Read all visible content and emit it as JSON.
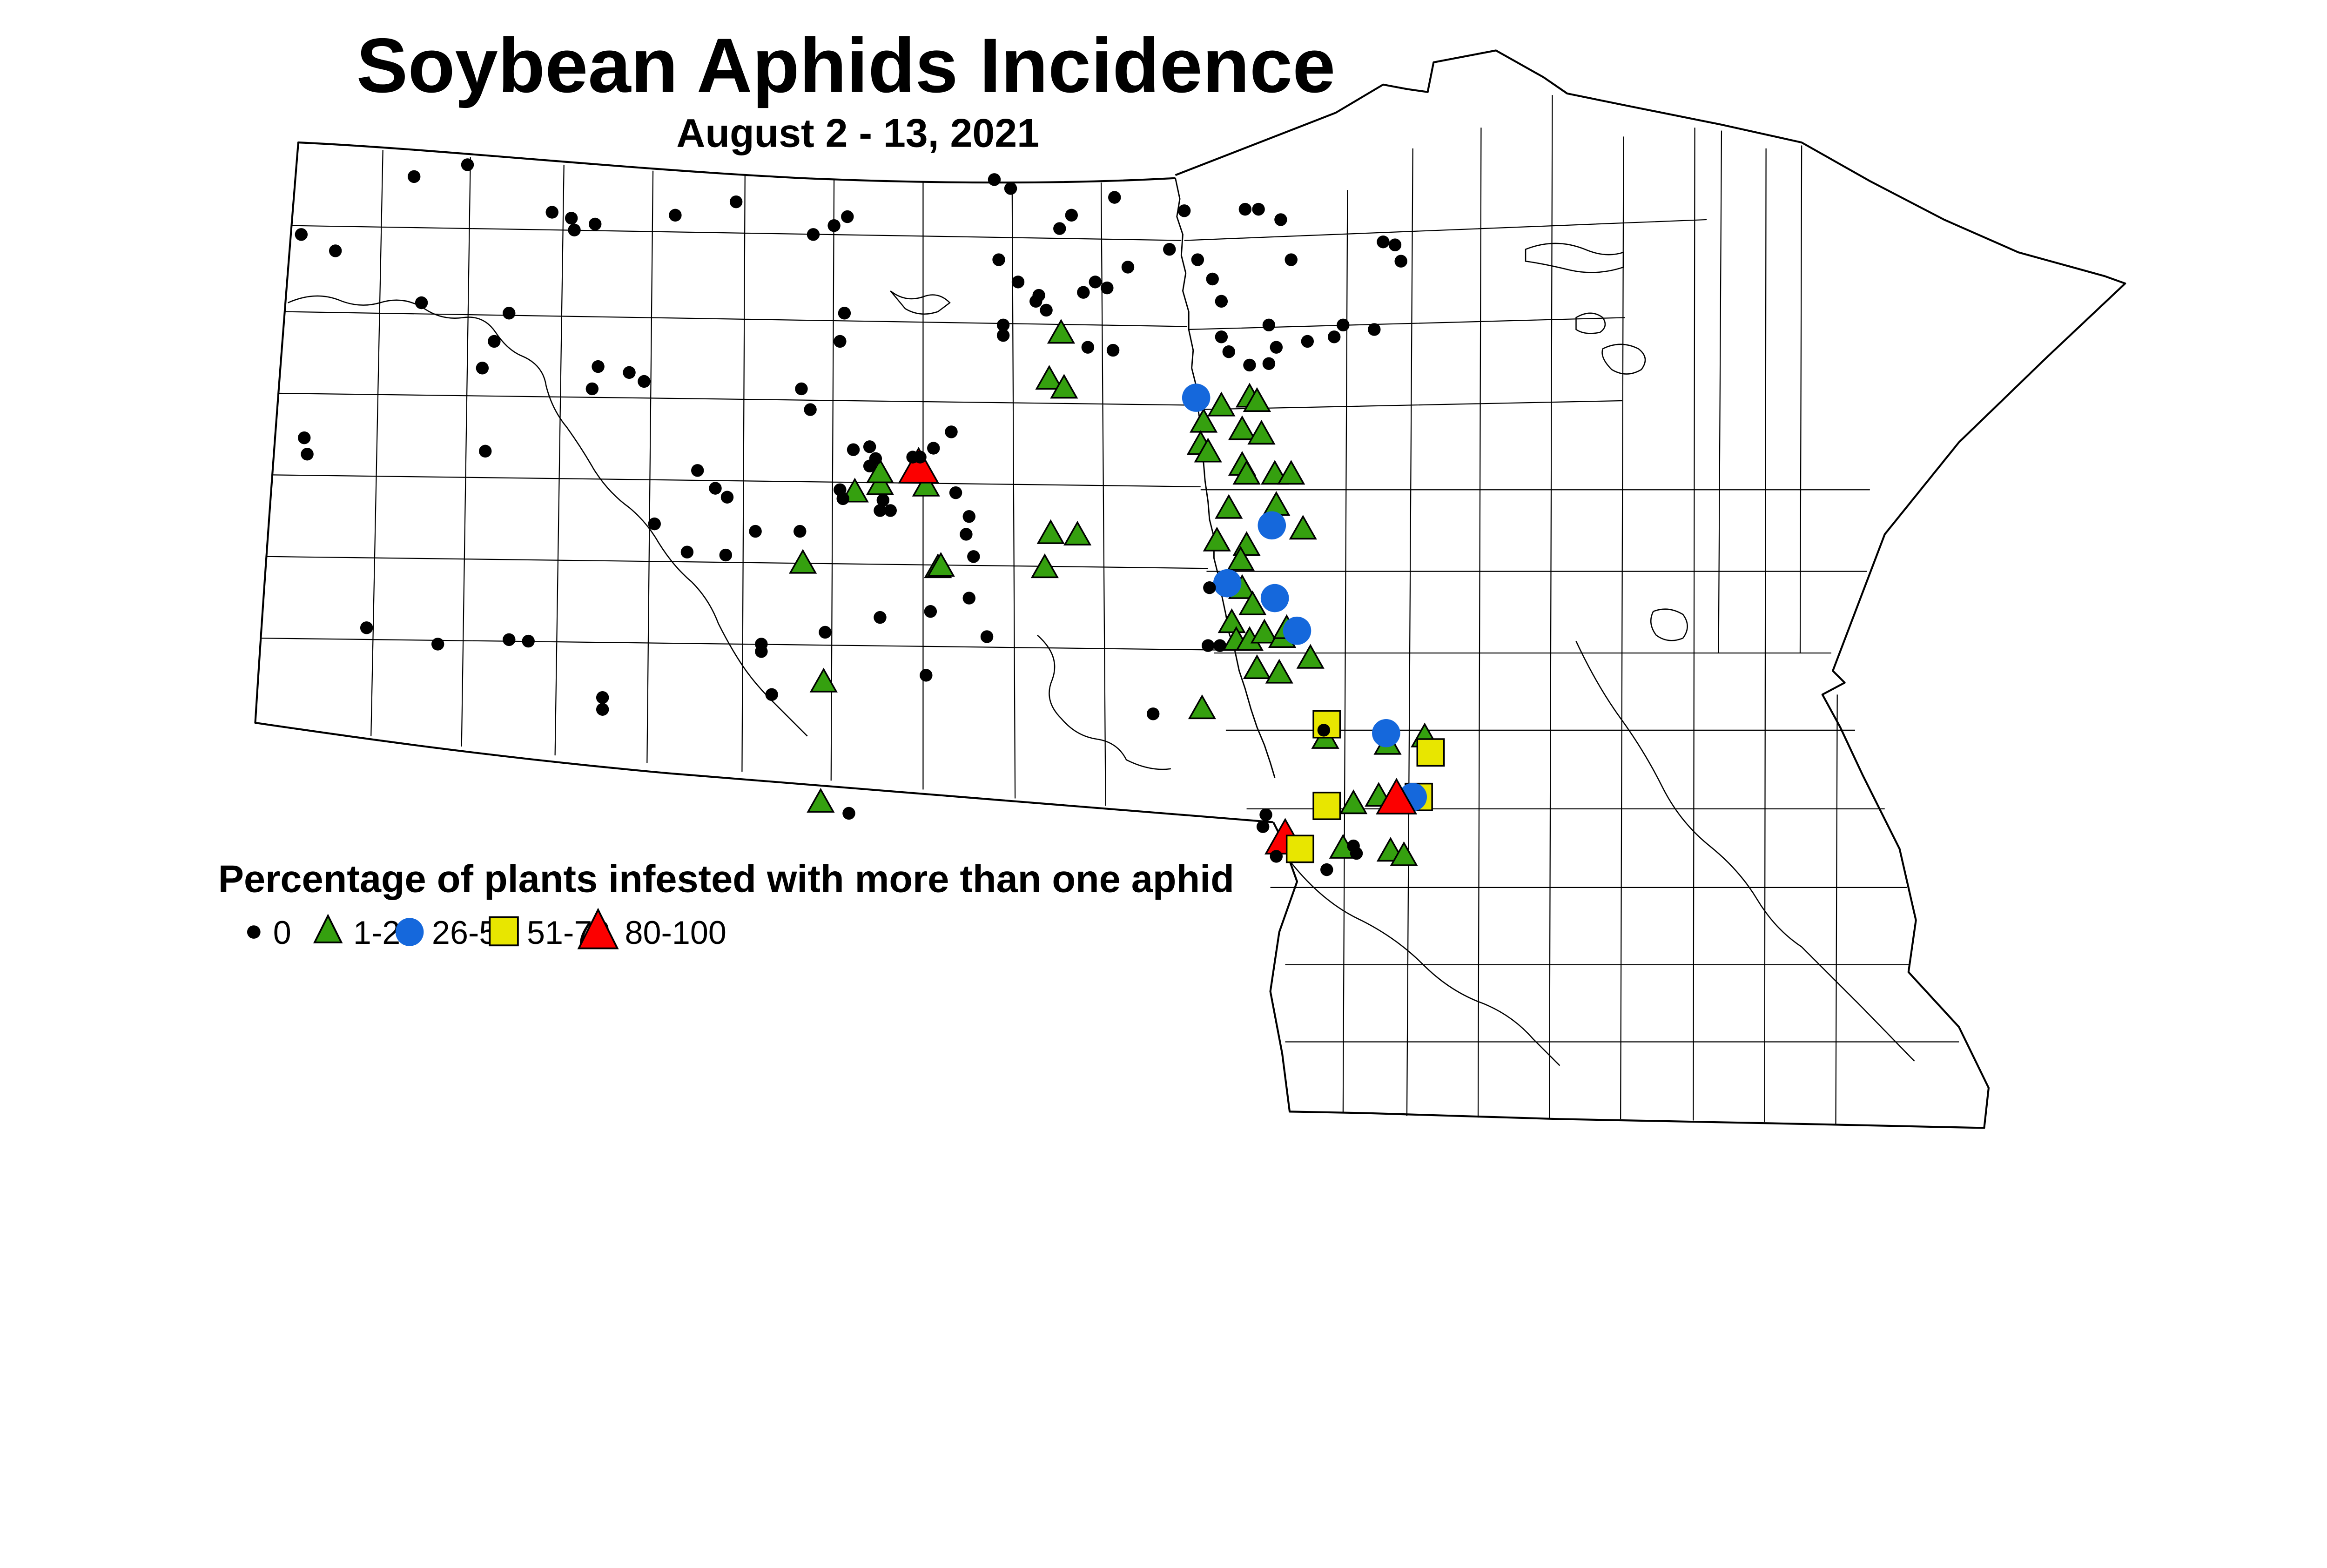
{
  "title": "Soybean Aphids Incidence",
  "subtitle": "August 2 - 13, 2021",
  "legend": {
    "heading": "Percentage of plants infested with more than one aphid",
    "items": [
      {
        "label": "0",
        "shape": "dot",
        "color": "#000000"
      },
      {
        "label": "1-25",
        "shape": "triangle",
        "color": "#35A00F"
      },
      {
        "label": "26-50",
        "shape": "circle",
        "color": "#1568DC"
      },
      {
        "label": "51-79",
        "shape": "square",
        "color": "#E8E600"
      },
      {
        "label": "80-100",
        "shape": "triangle-large",
        "color": "#FC0000"
      }
    ]
  },
  "colors": {
    "dot": "#000000",
    "green": "#35A00F",
    "blue": "#1568DC",
    "yellow": "#E8E600",
    "red": "#FC0000",
    "stroke": "#000000",
    "background": "#ffffff"
  },
  "markers": {
    "zero": {
      "label": "0",
      "points": [
        [
          203,
          158
        ],
        [
          226,
          169
        ],
        [
          279,
          119
        ],
        [
          315,
          111
        ],
        [
          372,
          143
        ],
        [
          385,
          147
        ],
        [
          387,
          155
        ],
        [
          401,
          151
        ],
        [
          455,
          145
        ],
        [
          496,
          136
        ],
        [
          548,
          158
        ],
        [
          562,
          152
        ],
        [
          571,
          146
        ],
        [
          343,
          211
        ],
        [
          333,
          230
        ],
        [
          325,
          248
        ],
        [
          403,
          247
        ],
        [
          399,
          262
        ],
        [
          424,
          251
        ],
        [
          434,
          257
        ],
        [
          284,
          204
        ],
        [
          205,
          295
        ],
        [
          207,
          306
        ],
        [
          327,
          304
        ],
        [
          569,
          211
        ],
        [
          566,
          230
        ],
        [
          540,
          262
        ],
        [
          546,
          276
        ],
        [
          470,
          317
        ],
        [
          482,
          329
        ],
        [
          490,
          335
        ],
        [
          575,
          303
        ],
        [
          586,
          301
        ],
        [
          590,
          309
        ],
        [
          586,
          314
        ],
        [
          641,
          291
        ],
        [
          629,
          302
        ],
        [
          615,
          308
        ],
        [
          620,
          308
        ],
        [
          566,
          330
        ],
        [
          568,
          336
        ],
        [
          595,
          337
        ],
        [
          593,
          344
        ],
        [
          600,
          344
        ],
        [
          644,
          332
        ],
        [
          653,
          348
        ],
        [
          651,
          360
        ],
        [
          656,
          375
        ],
        [
          509,
          358
        ],
        [
          539,
          358
        ],
        [
          653,
          403
        ],
        [
          627,
          412
        ],
        [
          593,
          416
        ],
        [
          556,
          426
        ],
        [
          513,
          434
        ],
        [
          513,
          439
        ],
        [
          624,
          455
        ],
        [
          665,
          429
        ],
        [
          670,
          121
        ],
        [
          681,
          127
        ],
        [
          751,
          133
        ],
        [
          722,
          145
        ],
        [
          714,
          154
        ],
        [
          798,
          142
        ],
        [
          839,
          141
        ],
        [
          848,
          141
        ],
        [
          863,
          148
        ],
        [
          788,
          168
        ],
        [
          673,
          175
        ],
        [
          686,
          190
        ],
        [
          760,
          180
        ],
        [
          738,
          190
        ],
        [
          746,
          194
        ],
        [
          730,
          197
        ],
        [
          700,
          199
        ],
        [
          698,
          203
        ],
        [
          705,
          209
        ],
        [
          807,
          175
        ],
        [
          870,
          175
        ],
        [
          817,
          188
        ],
        [
          823,
          203
        ],
        [
          676,
          219
        ],
        [
          676,
          226
        ],
        [
          733,
          234
        ],
        [
          750,
          236
        ],
        [
          855,
          219
        ],
        [
          860,
          234
        ],
        [
          899,
          227
        ],
        [
          926,
          222
        ],
        [
          932,
          163
        ],
        [
          940,
          165
        ],
        [
          944,
          176
        ],
        [
          905,
          219
        ],
        [
          823,
          227
        ],
        [
          828,
          237
        ],
        [
          842,
          246
        ],
        [
          855,
          245
        ],
        [
          881,
          230
        ],
        [
          815,
          396
        ],
        [
          814,
          435
        ],
        [
          822,
          435
        ],
        [
          777,
          481
        ],
        [
          247,
          423
        ],
        [
          295,
          434
        ],
        [
          343,
          431
        ],
        [
          356,
          432
        ],
        [
          406,
          470
        ],
        [
          406,
          478
        ],
        [
          520,
          468
        ],
        [
          489,
          374
        ],
        [
          463,
          372
        ],
        [
          441,
          353
        ],
        [
          572,
          548
        ],
        [
          853,
          549
        ],
        [
          851,
          557
        ],
        [
          860,
          577
        ],
        [
          894,
          586
        ],
        [
          912,
          570
        ],
        [
          914,
          575
        ],
        [
          892,
          492
        ]
      ]
    },
    "low": {
      "label": "1-25",
      "points": [
        [
          823,
          274
        ],
        [
          842,
          268
        ],
        [
          847,
          271
        ],
        [
          811,
          285
        ],
        [
          837,
          290
        ],
        [
          850,
          293
        ],
        [
          809,
          300
        ],
        [
          814,
          305
        ],
        [
          837,
          314
        ],
        [
          840,
          320
        ],
        [
          859,
          320
        ],
        [
          870,
          320
        ],
        [
          828,
          343
        ],
        [
          860,
          341
        ],
        [
          820,
          365
        ],
        [
          840,
          368
        ],
        [
          878,
          357
        ],
        [
          836,
          378
        ],
        [
          837,
          397
        ],
        [
          844,
          408
        ],
        [
          830,
          420
        ],
        [
          833,
          432
        ],
        [
          842,
          432
        ],
        [
          852,
          427
        ],
        [
          864,
          430
        ],
        [
          867,
          424
        ],
        [
          883,
          444
        ],
        [
          847,
          451
        ],
        [
          862,
          454
        ],
        [
          810,
          478
        ],
        [
          715,
          225
        ],
        [
          707,
          256
        ],
        [
          717,
          262
        ],
        [
          708,
          360
        ],
        [
          726,
          361
        ],
        [
          704,
          383
        ],
        [
          632,
          383
        ],
        [
          576,
          332
        ],
        [
          593,
          327
        ],
        [
          593,
          319
        ],
        [
          624,
          328
        ],
        [
          541,
          380
        ],
        [
          634,
          382
        ],
        [
          555,
          460
        ],
        [
          553,
          541
        ],
        [
          893,
          498
        ],
        [
          935,
          502
        ],
        [
          960,
          497
        ],
        [
          912,
          542
        ],
        [
          929,
          537
        ],
        [
          905,
          572
        ],
        [
          937,
          574
        ],
        [
          946,
          577
        ]
      ]
    },
    "mid": {
      "label": "26-50",
      "points": [
        [
          806,
          268
        ],
        [
          857,
          354
        ],
        [
          827,
          393
        ],
        [
          859,
          403
        ],
        [
          874,
          425
        ],
        [
          934,
          494
        ],
        [
          952,
          537
        ]
      ]
    },
    "high": {
      "label": "51-79",
      "points": [
        [
          894,
          488
        ],
        [
          964,
          507
        ],
        [
          894,
          543
        ],
        [
          956,
          537
        ],
        [
          876,
          572
        ]
      ]
    },
    "severe_under": {
      "label": "80-100",
      "points": [
        [
          619,
          316
        ],
        [
          866,
          566
        ]
      ]
    },
    "severe_top": {
      "label": "80-100",
      "points": [
        [
          941,
          539
        ]
      ]
    }
  }
}
